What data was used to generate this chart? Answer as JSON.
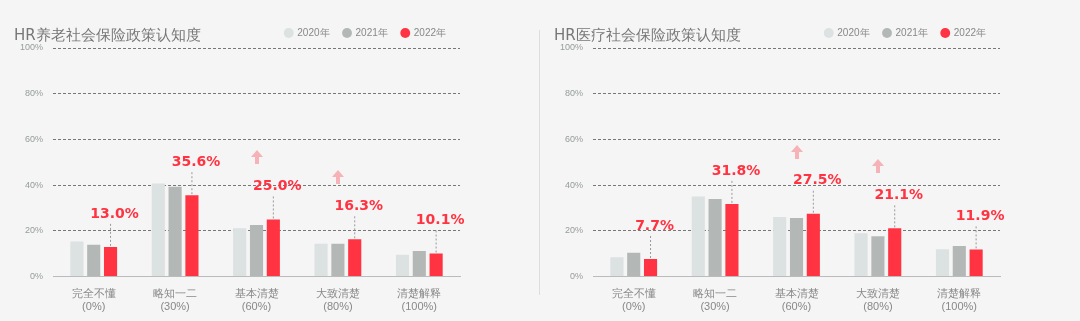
{
  "chart_data": [
    {
      "type": "bar",
      "title": "HR养老社会保险政策认知度",
      "categories": [
        "完全不懂\n(0%)",
        "略知一二\n(30%)",
        "基本清楚\n(60%)",
        "大致清楚\n(80%)",
        "清楚解释\n(100%)"
      ],
      "series": [
        {
          "name": "2020年",
          "color": "#dce1e1",
          "values": [
            15.4,
            40.7,
            21.2,
            14.4,
            9.6
          ]
        },
        {
          "name": "2021年",
          "color": "#b3b8b6",
          "values": [
            13.9,
            39.3,
            22.6,
            14.4,
            11.2
          ]
        },
        {
          "name": "2022年",
          "color": "#ff3341",
          "values": [
            13.0,
            35.6,
            25.0,
            16.3,
            10.1
          ],
          "value_labels": [
            "13.0%",
            "35.6%",
            "25.0%",
            "16.3%",
            "10.1%"
          ]
        }
      ],
      "ylim": [
        0,
        100
      ],
      "yticks": [
        {
          "value": 0,
          "label": "0%"
        },
        {
          "value": 20,
          "label": "20%"
        },
        {
          "value": 40,
          "label": "40%"
        },
        {
          "value": 60,
          "label": "60%"
        },
        {
          "value": 80,
          "label": "80%"
        },
        {
          "value": 100,
          "label": "100%"
        }
      ],
      "grid": "y",
      "legend": "top right"
    },
    {
      "type": "bar",
      "title": "HR医疗社会保险政策认知度",
      "categories": [
        "完全不懂\n(0%)",
        "略知一二\n(30%)",
        "基本清楚\n(60%)",
        "大致清楚\n(80%)",
        "清楚解释\n(100%)"
      ],
      "series": [
        {
          "name": "2020年",
          "color": "#dce1e1",
          "values": [
            8.5,
            35.0,
            26.1,
            19.0,
            12.0
          ]
        },
        {
          "name": "2021年",
          "color": "#b3b8b6",
          "values": [
            10.4,
            33.9,
            25.6,
            17.6,
            13.4
          ]
        },
        {
          "name": "2022年",
          "color": "#ff3341",
          "values": [
            7.7,
            31.8,
            27.5,
            21.1,
            11.9
          ],
          "value_labels": [
            "7.7%",
            "31.8%",
            "27.5%",
            "21.1%",
            "11.9%"
          ]
        }
      ],
      "ylim": [
        0,
        100
      ],
      "yticks": [
        {
          "value": 0,
          "label": "0%"
        },
        {
          "value": 20,
          "label": "20%"
        },
        {
          "value": 40,
          "label": "40%"
        },
        {
          "value": 60,
          "label": "60%"
        },
        {
          "value": 80,
          "label": "80%"
        },
        {
          "value": 100,
          "label": "100%"
        }
      ],
      "grid": "y",
      "legend": "top right"
    }
  ]
}
